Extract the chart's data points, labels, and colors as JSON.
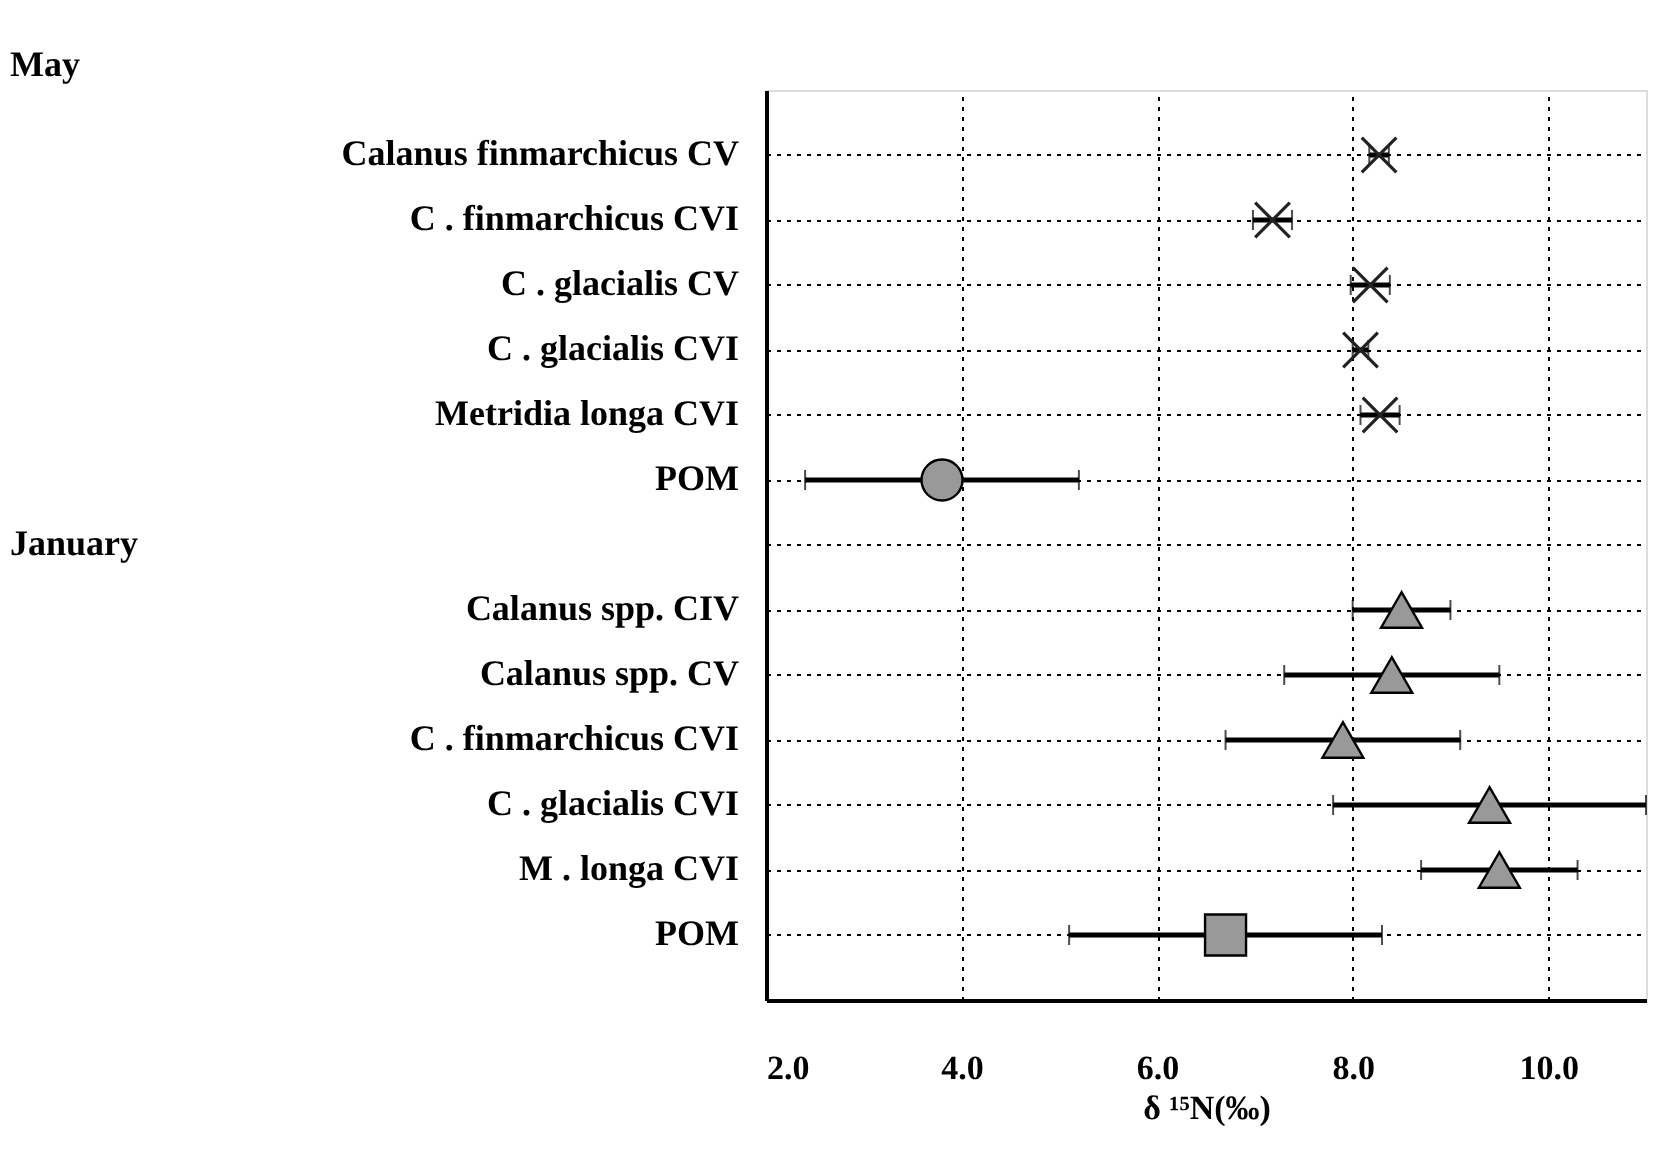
{
  "chart_data": {
    "type": "scatter",
    "categories": [
      "Calanus finmarchicus CV",
      "C . finmarchicus CVI",
      "C . glacialis CV",
      "C . glacialis CVI",
      "Metridia longa CVI",
      "POM",
      null,
      "Calanus spp. CIV",
      "Calanus spp. CV",
      "C . finmarchicus CVI",
      "C . glacialis CVI",
      "M . longa CVI",
      "POM"
    ],
    "series": [
      {
        "color": "#222222",
        "marker": "cross",
        "values": [
          8.27,
          7.18,
          8.18,
          8.08,
          8.28,
          null,
          null,
          null,
          null,
          null,
          null,
          null,
          null
        ],
        "errors": [
          0.1,
          0.2,
          0.2,
          0.08,
          0.2,
          null,
          null,
          null,
          null,
          null,
          null,
          null,
          null
        ]
      },
      {
        "color": "#999999",
        "marker": "circle",
        "values": [
          null,
          null,
          null,
          null,
          null,
          3.8,
          null,
          null,
          null,
          null,
          null,
          null,
          null
        ],
        "errors": [
          null,
          null,
          null,
          null,
          null,
          1.4,
          null,
          null,
          null,
          null,
          null,
          null,
          null
        ]
      },
      {
        "color": "#999999",
        "marker": "triangle",
        "values": [
          null,
          null,
          null,
          null,
          null,
          null,
          null,
          8.5,
          8.4,
          7.9,
          9.4,
          9.5,
          null
        ],
        "errors": [
          null,
          null,
          null,
          null,
          null,
          null,
          null,
          0.5,
          1.1,
          1.2,
          1.6,
          0.8,
          null
        ]
      },
      {
        "color": "#999999",
        "marker": "square",
        "values": [
          null,
          null,
          null,
          null,
          null,
          null,
          null,
          null,
          null,
          null,
          null,
          null,
          6.7
        ],
        "errors": [
          null,
          null,
          null,
          null,
          null,
          null,
          null,
          null,
          null,
          null,
          null,
          null,
          1.6
        ]
      }
    ],
    "orientation": "horizontal",
    "xlabel": "δ ¹⁵N(‰)",
    "xlim": [
      2,
      11
    ],
    "xticks": [
      {
        "value": 2,
        "label": "2.0"
      },
      {
        "value": 4,
        "label": "4.0"
      },
      {
        "value": 6,
        "label": "6.0"
      },
      {
        "value": 8,
        "label": "8.0"
      },
      {
        "value": 10,
        "label": "10.0"
      }
    ],
    "annotations": [
      "May",
      "January"
    ],
    "grid": true
  }
}
